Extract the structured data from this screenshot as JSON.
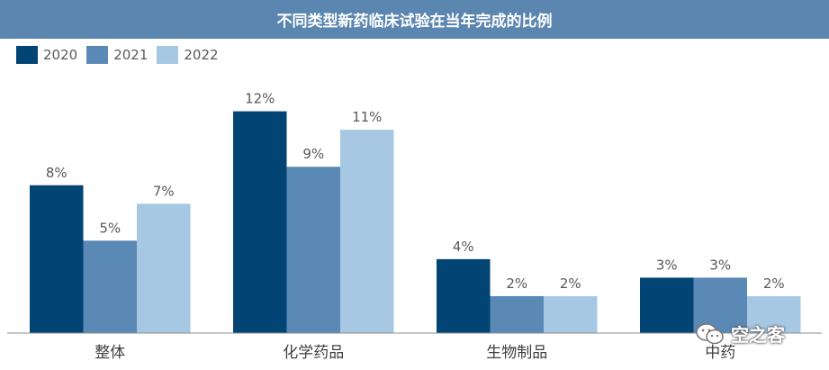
{
  "watermark": {
    "text": "空之客",
    "icon": "wechat-icon"
  },
  "chart_data": {
    "type": "bar",
    "title": "不同类型新药临床试验在当年完成的比例",
    "categories": [
      "整体",
      "化学药品",
      "生物制品",
      "中药"
    ],
    "series": [
      {
        "name": "2020",
        "color": "#024575",
        "values": [
          8,
          12,
          4,
          3
        ],
        "labels": [
          "8%",
          "12%",
          "4%",
          "3%"
        ]
      },
      {
        "name": "2021",
        "color": "#5b89b5",
        "values": [
          5,
          9,
          2,
          3
        ],
        "labels": [
          "5%",
          "9%",
          "2%",
          "3%"
        ]
      },
      {
        "name": "2022",
        "color": "#a6c8e3",
        "values": [
          7,
          11,
          2,
          2
        ],
        "labels": [
          "7%",
          "11%",
          "2%",
          "2%"
        ]
      }
    ],
    "ylim": [
      0,
      13.2
    ],
    "grid": false,
    "legend_position": "top-left"
  }
}
